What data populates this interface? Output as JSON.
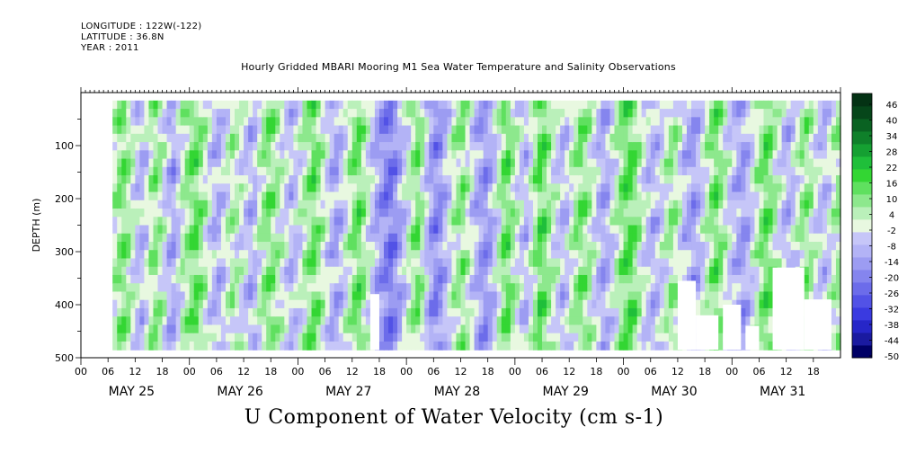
{
  "header": {
    "longitude": "LONGITUDE : 122W(-122)",
    "latitude": "LATITUDE : 36.8N",
    "year": "YEAR : 2011"
  },
  "title": "Hourly Gridded MBARI Mooring M1 Sea Water Temperature and Salinity Observations",
  "bottom_title": "U Component of Water Velocity (cm s-1)",
  "chart_data": {
    "type": "heatmap",
    "variable": "U Component of Water Velocity (cm s-1)",
    "ylabel": "DEPTH (m)",
    "y_reversed": true,
    "ylim": [
      500,
      0
    ],
    "y_ticks": [
      100,
      200,
      300,
      400,
      500
    ],
    "x_range_hours": [
      0,
      168
    ],
    "x_hour_ticks": [
      "00",
      "06",
      "12",
      "18",
      "00",
      "06",
      "12",
      "18",
      "00",
      "06",
      "12",
      "18",
      "00",
      "06",
      "12",
      "18",
      "00",
      "06",
      "12",
      "18",
      "00",
      "06",
      "12",
      "18",
      "00",
      "06",
      "12",
      "18"
    ],
    "x_day_labels": [
      "MAY 25",
      "MAY 26",
      "MAY 27",
      "MAY 28",
      "MAY 29",
      "MAY 30",
      "MAY 31"
    ],
    "data_start_hour": 7,
    "data_depth_range": [
      15,
      485
    ],
    "colorbar": {
      "labels": [
        "46",
        "40",
        "34",
        "28",
        "22",
        "16",
        "10",
        "4",
        "-2",
        "-8",
        "-14",
        "-20",
        "-26",
        "-32",
        "-38",
        "-44",
        "-50"
      ],
      "min": -50,
      "max": 52,
      "colors": [
        "#000066",
        "#1a1aa0",
        "#2626c8",
        "#3a3ae0",
        "#5252e6",
        "#6c6cea",
        "#8585ee",
        "#9c9cf2",
        "#b3b3f6",
        "#c6c6f8",
        "#e8f8e0",
        "#baf0ba",
        "#8de88d",
        "#5fe05f",
        "#33d633",
        "#1fbf3a",
        "#15a032",
        "#0f802a",
        "#0a6222",
        "#06461a",
        "#043214"
      ]
    },
    "column_means": [
      0,
      0,
      0,
      0,
      0,
      0,
      0,
      4,
      10,
      12,
      8,
      2,
      -4,
      -6,
      -2,
      6,
      10,
      6,
      0,
      -8,
      -10,
      -4,
      4,
      8,
      12,
      14,
      10,
      4,
      -2,
      -6,
      -8,
      -4,
      2,
      6,
      4,
      0,
      -4,
      -8,
      -6,
      2,
      8,
      12,
      10,
      6,
      2,
      -2,
      -6,
      -4,
      0,
      6,
      10,
      14,
      10,
      4,
      -2,
      -8,
      -10,
      -6,
      0,
      6,
      12,
      14,
      8,
      2,
      -4,
      -10,
      -14,
      -18,
      -20,
      -16,
      -10,
      -4,
      2,
      8,
      12,
      6,
      -4,
      -12,
      -16,
      -14,
      -8,
      -2,
      4,
      8,
      10,
      4,
      -2,
      -8,
      -12,
      -14,
      -10,
      -4,
      4,
      12,
      14,
      8,
      2,
      -4,
      -6,
      0,
      8,
      16,
      14,
      8,
      2,
      -2,
      -6,
      -4,
      2,
      8,
      12,
      10,
      6,
      0,
      -6,
      -10,
      -8,
      -2,
      4,
      10,
      14,
      16,
      12,
      6,
      0,
      -4,
      -8,
      -6,
      -2,
      4,
      8,
      6,
      0,
      -6,
      -10,
      -12,
      -8,
      -2,
      4,
      10,
      14,
      10,
      4,
      -2,
      -6,
      -10,
      -12,
      -8,
      -2,
      4,
      10,
      14,
      12,
      6,
      0,
      -6,
      -8,
      -4,
      2,
      8,
      10,
      6,
      0,
      -4,
      -6,
      -2,
      4,
      8
    ],
    "missing_regions": [
      {
        "hours": [
          64,
          66
        ],
        "depth": [
          380,
          485
        ]
      },
      {
        "hours": [
          132,
          136
        ],
        "depth": [
          355,
          485
        ]
      },
      {
        "hours": [
          136,
          141
        ],
        "depth": [
          420,
          485
        ]
      },
      {
        "hours": [
          142,
          146
        ],
        "depth": [
          400,
          485
        ]
      },
      {
        "hours": [
          147,
          150
        ],
        "depth": [
          440,
          485
        ]
      },
      {
        "hours": [
          153,
          160
        ],
        "depth": [
          330,
          485
        ]
      },
      {
        "hours": [
          160,
          166
        ],
        "depth": [
          390,
          485
        ]
      }
    ]
  }
}
